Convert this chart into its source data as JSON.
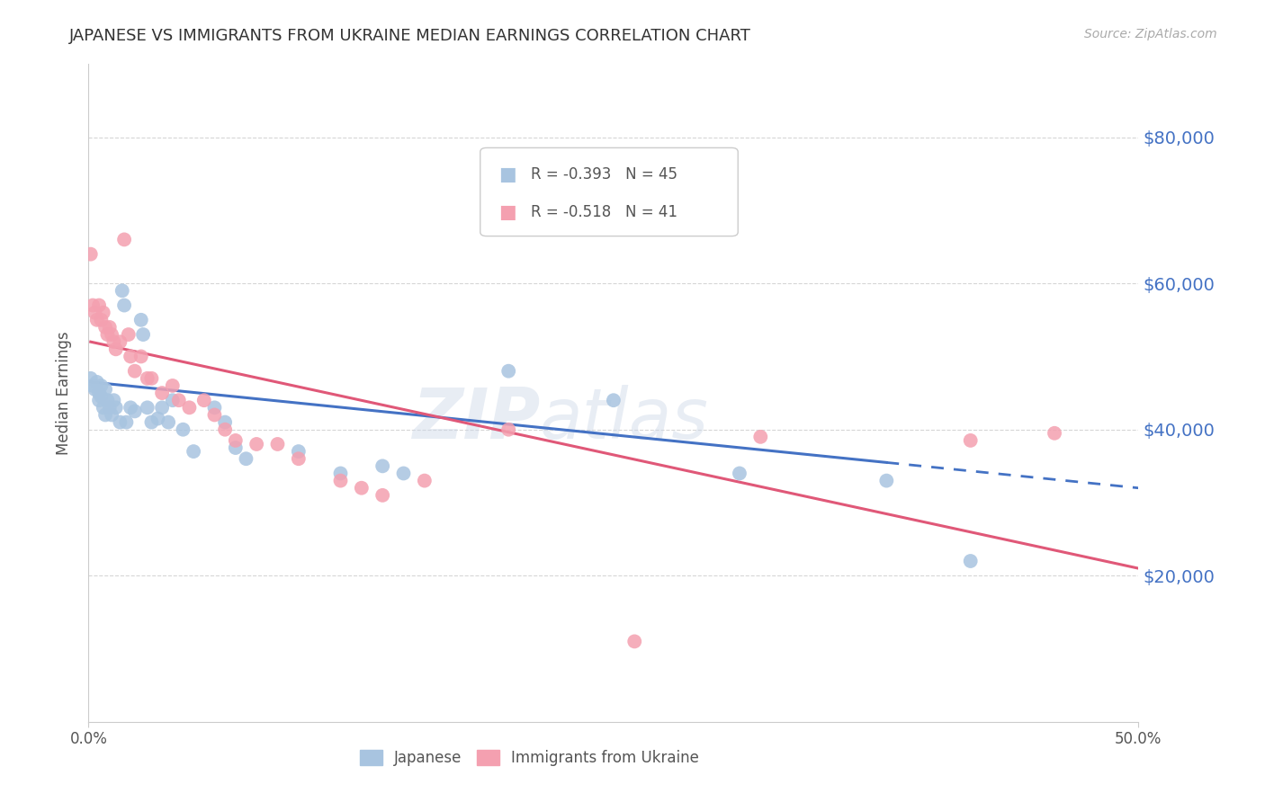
{
  "title": "JAPANESE VS IMMIGRANTS FROM UKRAINE MEDIAN EARNINGS CORRELATION CHART",
  "source": "Source: ZipAtlas.com",
  "ylabel": "Median Earnings",
  "xlim": [
    0.0,
    0.5
  ],
  "ylim": [
    0,
    90000
  ],
  "yticks": [
    20000,
    40000,
    60000,
    80000
  ],
  "ytick_labels": [
    "$20,000",
    "$40,000",
    "$60,000",
    "$80,000"
  ],
  "watermark_zip": "ZIP",
  "watermark_atlas": "atlas",
  "legend1_R": "-0.393",
  "legend1_N": "45",
  "legend2_R": "-0.518",
  "legend2_N": "41",
  "japanese_color": "#a8c4e0",
  "ukraine_color": "#f4a0b0",
  "japanese_line_color": "#4472c4",
  "ukraine_line_color": "#e05878",
  "japanese_scatter": [
    [
      0.001,
      47000
    ],
    [
      0.002,
      46000
    ],
    [
      0.003,
      45500
    ],
    [
      0.004,
      46500
    ],
    [
      0.005,
      44000
    ],
    [
      0.005,
      45000
    ],
    [
      0.006,
      46000
    ],
    [
      0.006,
      44500
    ],
    [
      0.007,
      43000
    ],
    [
      0.008,
      45500
    ],
    [
      0.008,
      42000
    ],
    [
      0.009,
      44000
    ],
    [
      0.01,
      43000
    ],
    [
      0.011,
      42000
    ],
    [
      0.012,
      44000
    ],
    [
      0.013,
      43000
    ],
    [
      0.015,
      41000
    ],
    [
      0.016,
      59000
    ],
    [
      0.017,
      57000
    ],
    [
      0.018,
      41000
    ],
    [
      0.02,
      43000
    ],
    [
      0.022,
      42500
    ],
    [
      0.025,
      55000
    ],
    [
      0.026,
      53000
    ],
    [
      0.028,
      43000
    ],
    [
      0.03,
      41000
    ],
    [
      0.033,
      41500
    ],
    [
      0.035,
      43000
    ],
    [
      0.038,
      41000
    ],
    [
      0.04,
      44000
    ],
    [
      0.045,
      40000
    ],
    [
      0.05,
      37000
    ],
    [
      0.06,
      43000
    ],
    [
      0.065,
      41000
    ],
    [
      0.07,
      37500
    ],
    [
      0.075,
      36000
    ],
    [
      0.1,
      37000
    ],
    [
      0.12,
      34000
    ],
    [
      0.14,
      35000
    ],
    [
      0.15,
      34000
    ],
    [
      0.2,
      48000
    ],
    [
      0.25,
      44000
    ],
    [
      0.31,
      34000
    ],
    [
      0.38,
      33000
    ],
    [
      0.42,
      22000
    ]
  ],
  "ukraine_scatter": [
    [
      0.001,
      64000
    ],
    [
      0.002,
      57000
    ],
    [
      0.003,
      56000
    ],
    [
      0.004,
      55000
    ],
    [
      0.005,
      57000
    ],
    [
      0.006,
      55000
    ],
    [
      0.007,
      56000
    ],
    [
      0.008,
      54000
    ],
    [
      0.009,
      53000
    ],
    [
      0.01,
      54000
    ],
    [
      0.011,
      53000
    ],
    [
      0.012,
      52000
    ],
    [
      0.013,
      51000
    ],
    [
      0.015,
      52000
    ],
    [
      0.017,
      66000
    ],
    [
      0.019,
      53000
    ],
    [
      0.02,
      50000
    ],
    [
      0.022,
      48000
    ],
    [
      0.025,
      50000
    ],
    [
      0.028,
      47000
    ],
    [
      0.03,
      47000
    ],
    [
      0.035,
      45000
    ],
    [
      0.04,
      46000
    ],
    [
      0.043,
      44000
    ],
    [
      0.048,
      43000
    ],
    [
      0.055,
      44000
    ],
    [
      0.06,
      42000
    ],
    [
      0.065,
      40000
    ],
    [
      0.07,
      38500
    ],
    [
      0.08,
      38000
    ],
    [
      0.09,
      38000
    ],
    [
      0.1,
      36000
    ],
    [
      0.12,
      33000
    ],
    [
      0.13,
      32000
    ],
    [
      0.14,
      31000
    ],
    [
      0.16,
      33000
    ],
    [
      0.2,
      40000
    ],
    [
      0.26,
      11000
    ],
    [
      0.32,
      39000
    ],
    [
      0.42,
      38500
    ],
    [
      0.46,
      39500
    ]
  ],
  "jp_trendline": [
    [
      0.001,
      46500
    ],
    [
      0.5,
      32000
    ]
  ],
  "uk_trendline": [
    [
      0.001,
      52000
    ],
    [
      0.5,
      21000
    ]
  ]
}
